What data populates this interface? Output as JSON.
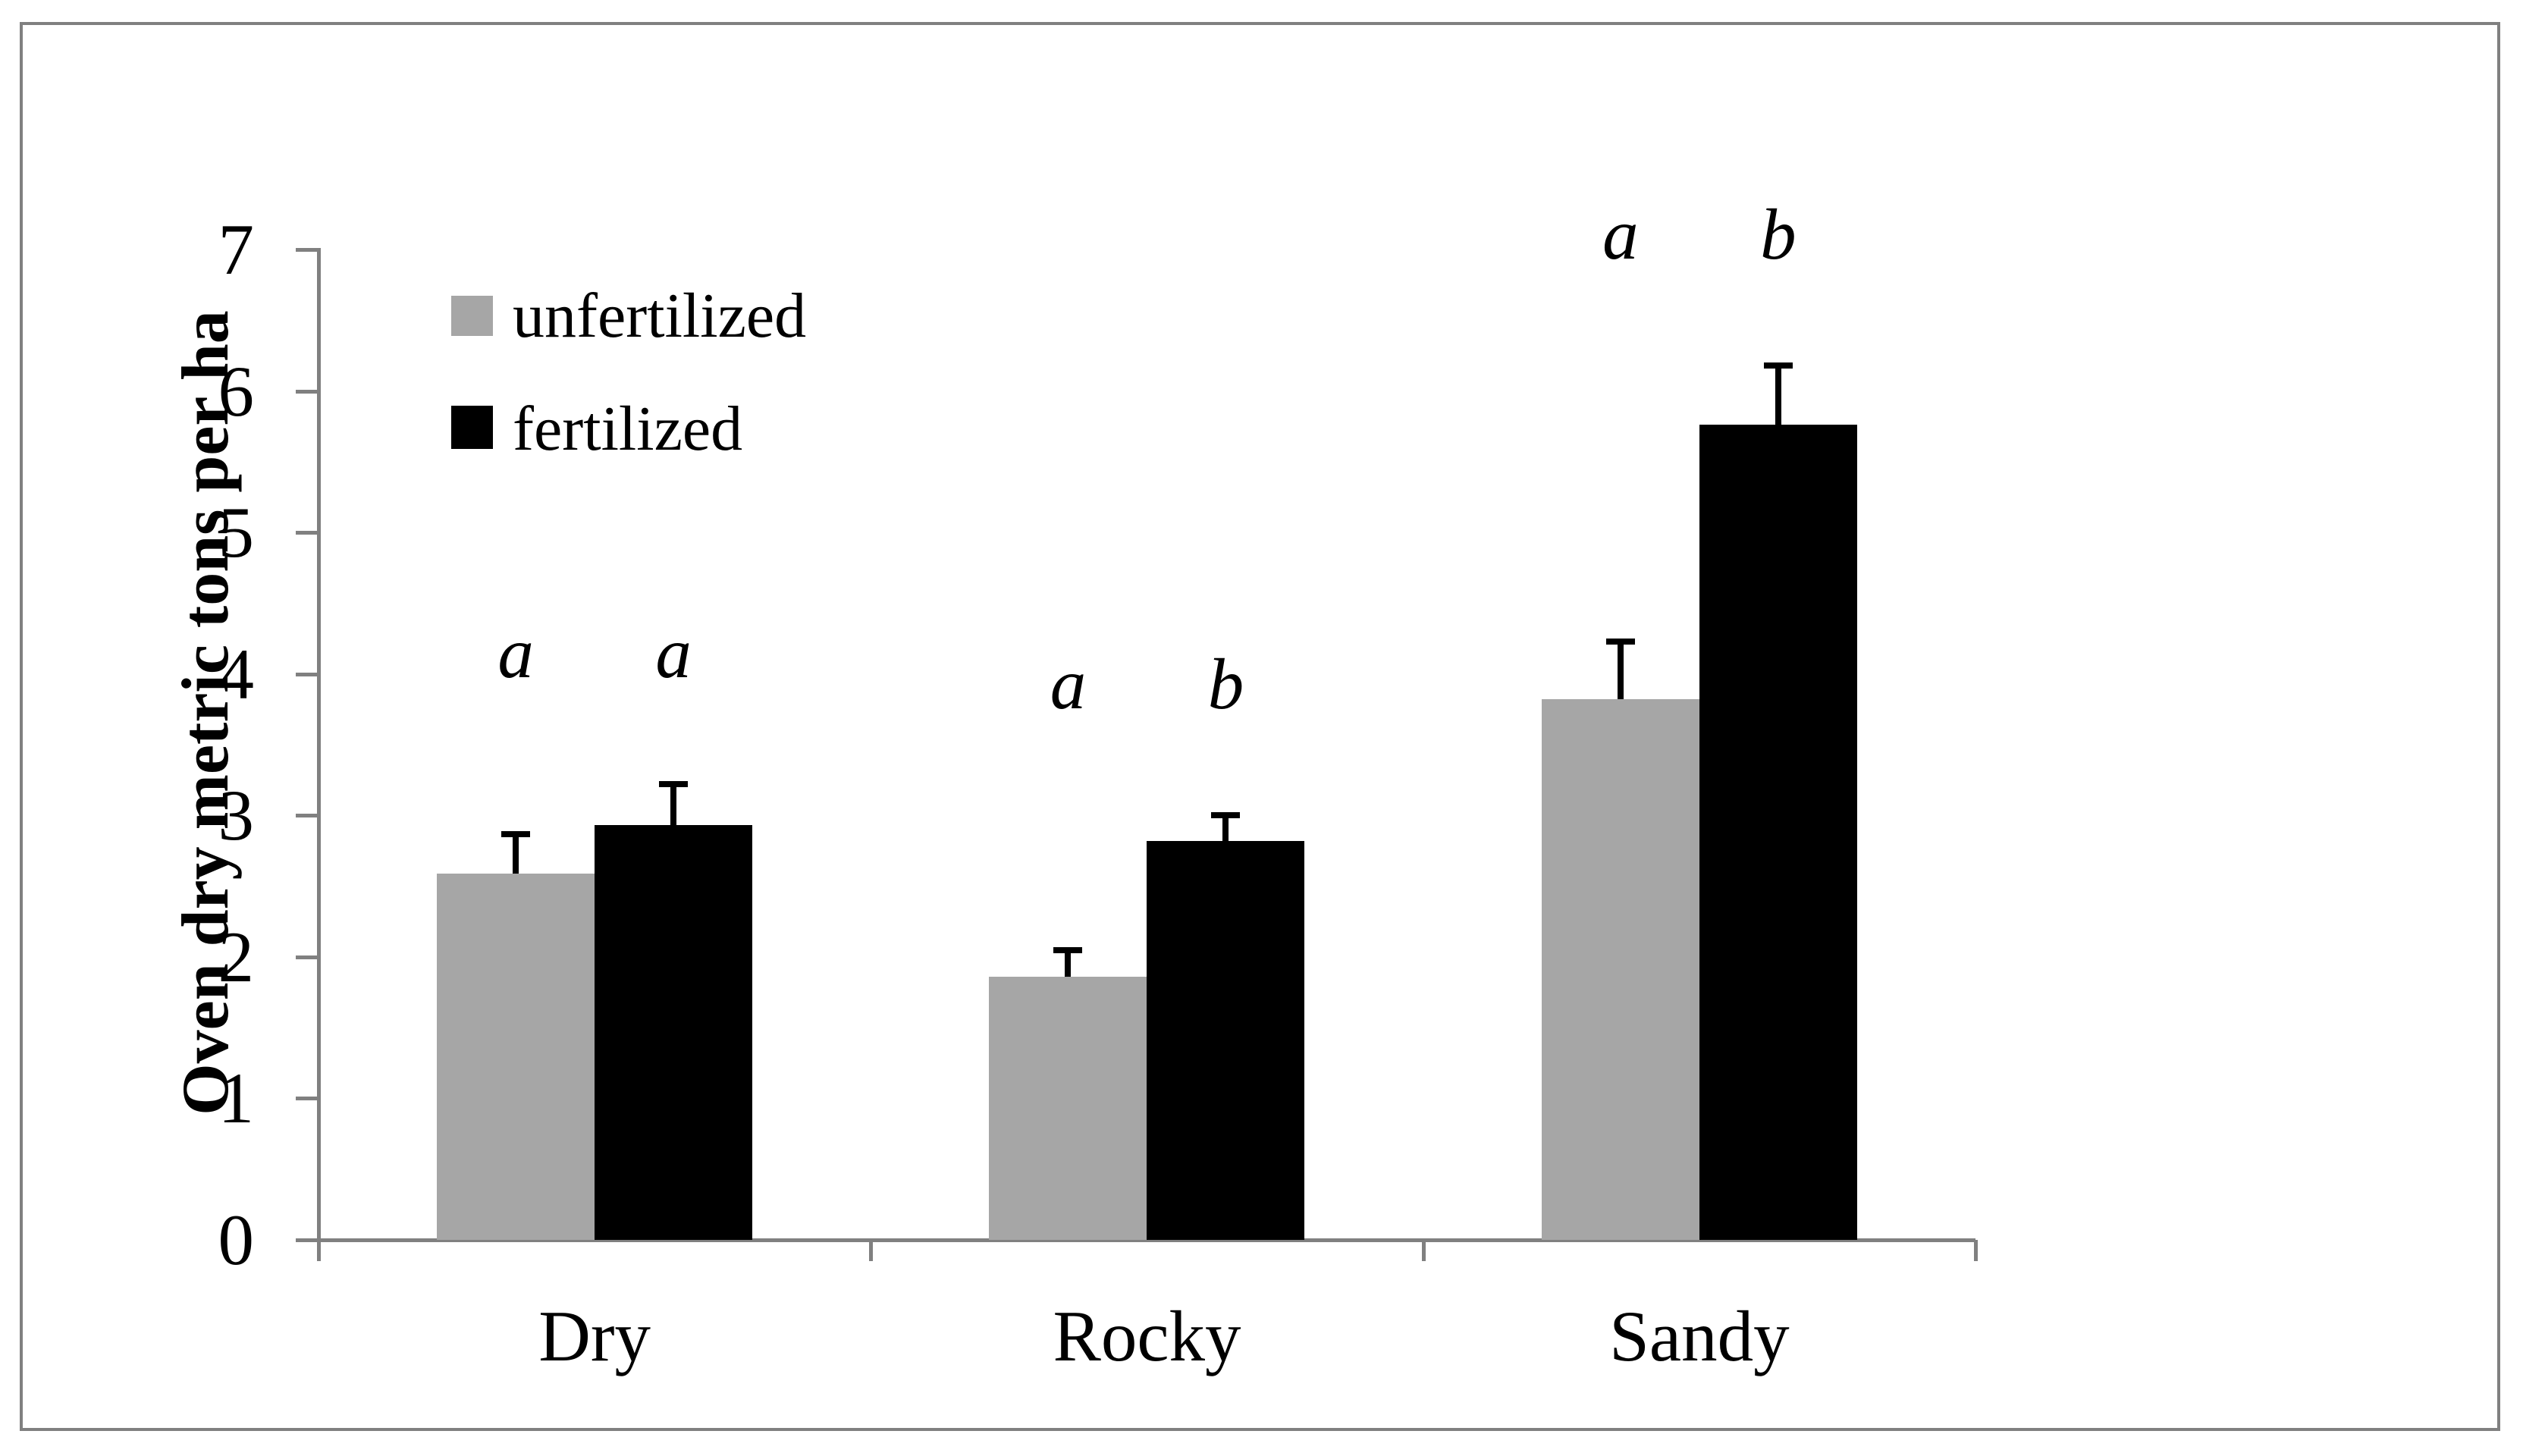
{
  "figure": {
    "frame_color": "#808080",
    "background_color": "#ffffff",
    "axis_color": "#808080",
    "text_color": "#000000"
  },
  "legend": {
    "items": [
      {
        "label": "unfertilized",
        "color": "#a6a6a6"
      },
      {
        "label": "fertilized",
        "color": "#000000"
      }
    ]
  },
  "chart_data": {
    "type": "bar",
    "title": "",
    "xlabel": "",
    "ylabel": "Oven dry metric tons per ha",
    "ylim": [
      0,
      7
    ],
    "yticks": [
      0,
      1,
      2,
      3,
      4,
      5,
      6,
      7
    ],
    "grid": false,
    "legend_position": "upper-left-inside",
    "categories": [
      "Dry",
      "Rocky",
      "Sandy"
    ],
    "series": [
      {
        "name": "unfertilized",
        "color": "#a6a6a6",
        "values": [
          2.59,
          1.86,
          3.82
        ],
        "errors": [
          0.28,
          0.19,
          0.41
        ],
        "sig_letters": [
          "a",
          "a",
          "a"
        ]
      },
      {
        "name": "fertilized",
        "color": "#000000",
        "values": [
          2.93,
          2.82,
          5.76
        ],
        "errors": [
          0.29,
          0.18,
          0.42
        ],
        "sig_letters": [
          "a",
          "b",
          "b"
        ]
      }
    ]
  }
}
